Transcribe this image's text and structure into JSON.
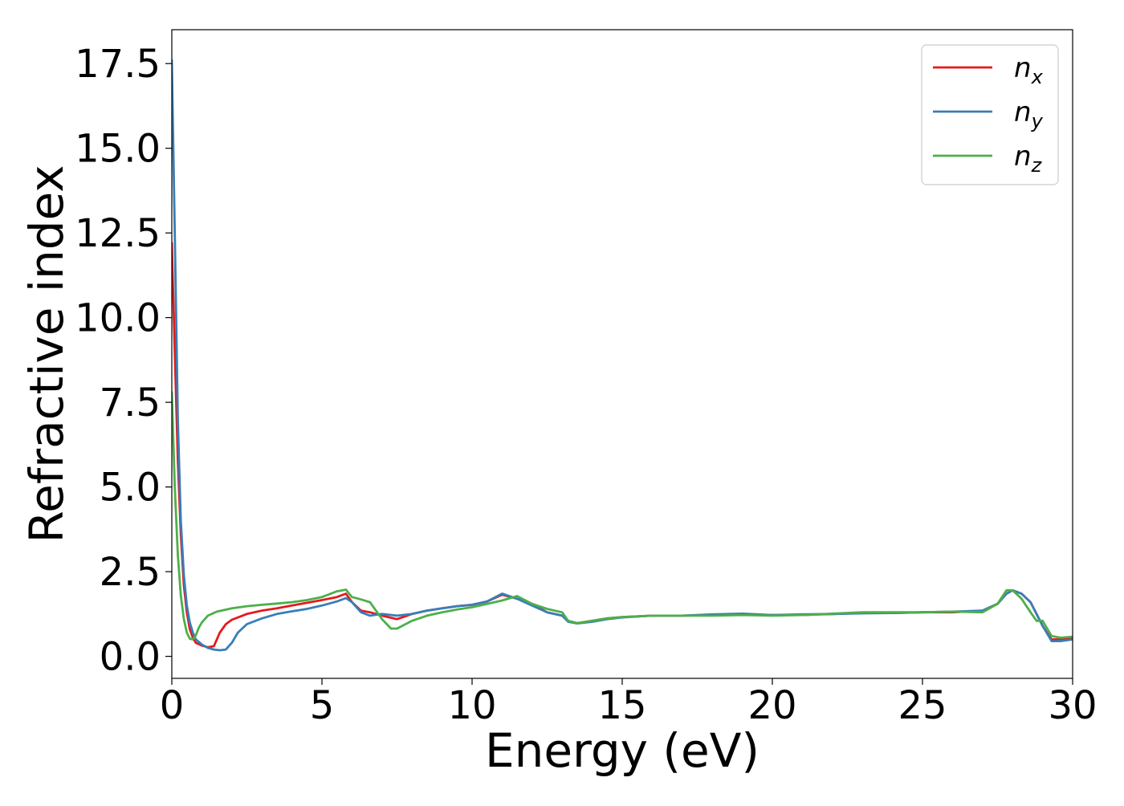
{
  "chart_data": {
    "type": "line",
    "xlabel": "Energy (eV)",
    "ylabel": "Refractive index",
    "xlim": [
      0,
      30
    ],
    "ylim": [
      -0.65,
      18.5
    ],
    "x_ticks": [
      "0",
      "5",
      "10",
      "15",
      "20",
      "25",
      "30"
    ],
    "y_ticks": [
      "0.0",
      "2.5",
      "5.0",
      "7.5",
      "10.0",
      "12.5",
      "15.0",
      "17.5"
    ],
    "grid": false,
    "legend_position": "top-right",
    "series": [
      {
        "name": "n_x",
        "legend_base": "n",
        "legend_sub": "x",
        "color": "#e41a1c",
        "x": [
          0,
          0.1,
          0.2,
          0.3,
          0.4,
          0.5,
          0.6,
          0.7,
          0.8,
          1.0,
          1.2,
          1.4,
          1.6,
          1.8,
          2.0,
          2.5,
          3.0,
          3.5,
          4.0,
          4.5,
          5.0,
          5.5,
          5.8,
          6.0,
          6.3,
          6.6,
          7.0,
          7.5,
          8.0,
          8.5,
          9.0,
          9.5,
          10.0,
          10.5,
          11.0,
          11.5,
          12.0,
          12.5,
          13.0,
          13.2,
          13.5,
          14.0,
          14.5,
          15.0,
          16.0,
          17.0,
          18.0,
          19.0,
          20.0,
          21.0,
          22.0,
          23.0,
          24.0,
          25.0,
          26.0,
          27.0,
          27.5,
          27.8,
          28.0,
          28.3,
          28.6,
          29.0,
          29.3,
          29.6,
          30.0
        ],
        "y": [
          12.2,
          9.0,
          5.8,
          3.6,
          2.1,
          1.3,
          0.8,
          0.55,
          0.4,
          0.32,
          0.27,
          0.3,
          0.7,
          0.95,
          1.08,
          1.25,
          1.35,
          1.42,
          1.5,
          1.58,
          1.66,
          1.75,
          1.85,
          1.6,
          1.35,
          1.3,
          1.2,
          1.1,
          1.25,
          1.35,
          1.42,
          1.48,
          1.52,
          1.62,
          1.82,
          1.7,
          1.55,
          1.3,
          1.2,
          1.05,
          0.98,
          1.05,
          1.12,
          1.16,
          1.2,
          1.2,
          1.22,
          1.24,
          1.22,
          1.22,
          1.25,
          1.28,
          1.28,
          1.3,
          1.3,
          1.35,
          1.55,
          1.85,
          1.95,
          1.85,
          1.6,
          0.9,
          0.5,
          0.5,
          0.55
        ]
      },
      {
        "name": "n_y",
        "legend_base": "n",
        "legend_sub": "y",
        "color": "#377eb8",
        "x": [
          0,
          0.1,
          0.2,
          0.3,
          0.4,
          0.5,
          0.6,
          0.7,
          0.8,
          1.0,
          1.2,
          1.4,
          1.6,
          1.8,
          2.0,
          2.2,
          2.5,
          3.0,
          3.5,
          4.0,
          4.5,
          5.0,
          5.5,
          5.8,
          6.0,
          6.3,
          6.6,
          7.0,
          7.5,
          8.0,
          8.5,
          9.0,
          9.5,
          10.0,
          10.5,
          11.0,
          11.5,
          12.0,
          12.5,
          13.0,
          13.2,
          13.5,
          14.0,
          14.5,
          15.0,
          16.0,
          17.0,
          18.0,
          19.0,
          20.0,
          21.0,
          22.0,
          23.0,
          24.0,
          25.0,
          26.0,
          27.0,
          27.5,
          27.8,
          28.0,
          28.3,
          28.6,
          29.0,
          29.3,
          29.6,
          30.0
        ],
        "y": [
          17.6,
          12.5,
          7.0,
          4.0,
          2.4,
          1.5,
          1.0,
          0.7,
          0.5,
          0.35,
          0.25,
          0.2,
          0.18,
          0.2,
          0.4,
          0.7,
          0.95,
          1.12,
          1.25,
          1.33,
          1.4,
          1.5,
          1.62,
          1.72,
          1.6,
          1.3,
          1.2,
          1.25,
          1.2,
          1.25,
          1.35,
          1.42,
          1.48,
          1.52,
          1.62,
          1.85,
          1.7,
          1.5,
          1.3,
          1.2,
          1.02,
          0.97,
          1.02,
          1.1,
          1.15,
          1.2,
          1.2,
          1.24,
          1.26,
          1.22,
          1.24,
          1.25,
          1.27,
          1.28,
          1.3,
          1.32,
          1.35,
          1.55,
          1.85,
          1.95,
          1.85,
          1.6,
          0.9,
          0.45,
          0.45,
          0.5
        ]
      },
      {
        "name": "n_z",
        "legend_base": "n",
        "legend_sub": "z",
        "color": "#4daf4a",
        "x": [
          0,
          0.1,
          0.2,
          0.3,
          0.4,
          0.5,
          0.6,
          0.7,
          0.8,
          0.9,
          1.0,
          1.2,
          1.5,
          2.0,
          2.5,
          3.0,
          3.5,
          4.0,
          4.5,
          5.0,
          5.5,
          5.8,
          6.0,
          6.3,
          6.6,
          7.0,
          7.3,
          7.5,
          8.0,
          8.5,
          9.0,
          9.5,
          10.0,
          10.5,
          11.0,
          11.5,
          12.0,
          12.5,
          13.0,
          13.2,
          13.5,
          14.0,
          14.5,
          15.0,
          16.0,
          17.0,
          18.0,
          19.0,
          20.0,
          21.0,
          22.0,
          23.0,
          24.0,
          25.0,
          26.0,
          27.0,
          27.5,
          27.8,
          28.0,
          28.3,
          28.6,
          28.8,
          29.0,
          29.3,
          29.6,
          30.0
        ],
        "y": [
          7.8,
          5.0,
          3.0,
          1.8,
          1.1,
          0.7,
          0.52,
          0.5,
          0.62,
          0.85,
          1.0,
          1.2,
          1.32,
          1.42,
          1.48,
          1.52,
          1.56,
          1.6,
          1.66,
          1.75,
          1.92,
          1.97,
          1.75,
          1.68,
          1.6,
          1.1,
          0.82,
          0.82,
          1.05,
          1.2,
          1.3,
          1.38,
          1.45,
          1.55,
          1.65,
          1.78,
          1.55,
          1.4,
          1.3,
          1.05,
          0.98,
          1.05,
          1.12,
          1.16,
          1.2,
          1.2,
          1.2,
          1.22,
          1.2,
          1.22,
          1.26,
          1.3,
          1.3,
          1.3,
          1.32,
          1.3,
          1.55,
          1.95,
          1.95,
          1.7,
          1.3,
          1.05,
          1.05,
          0.6,
          0.55,
          0.58
        ]
      }
    ]
  }
}
